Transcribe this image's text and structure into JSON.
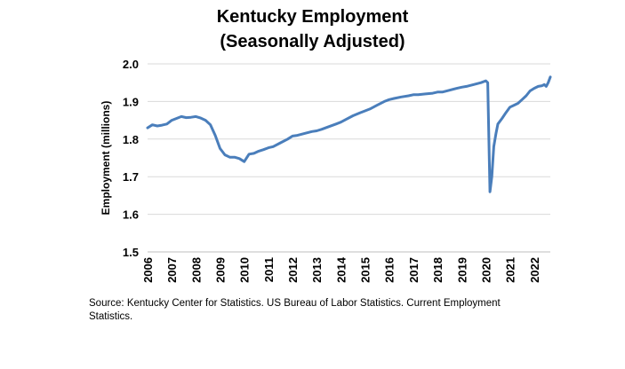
{
  "chart_data": {
    "type": "line",
    "title": "Kentucky Employment",
    "subtitle": "(Seasonally Adjusted)",
    "xlabel": "",
    "ylabel": "Employment (millions)",
    "ylim": [
      1.5,
      2.0
    ],
    "xlim": [
      2006,
      2022.67
    ],
    "yticks": [
      "1.5",
      "1.6",
      "1.7",
      "1.8",
      "1.9",
      "2.0"
    ],
    "xticks": [
      "2006",
      "2007",
      "2008",
      "2009",
      "2010",
      "2011",
      "2012",
      "2013",
      "2014",
      "2015",
      "2016",
      "2017",
      "2018",
      "2019",
      "2020",
      "2021",
      "2022"
    ],
    "grid": "horizontal",
    "legend": "none",
    "line_color": "#4a7ebb",
    "series": [
      {
        "x": [
          2006.0,
          2006.2,
          2006.4,
          2006.6,
          2006.8,
          2007.0,
          2007.2,
          2007.4,
          2007.6,
          2007.8,
          2008.0,
          2008.2,
          2008.4,
          2008.6,
          2008.8,
          2009.0,
          2009.2,
          2009.4,
          2009.6,
          2009.8,
          2010.0,
          2010.2,
          2010.4,
          2010.6,
          2010.8,
          2011.0,
          2011.2,
          2011.5,
          2011.8,
          2012.0,
          2012.2,
          2012.5,
          2012.8,
          2013.0,
          2013.2,
          2013.5,
          2013.8,
          2014.0,
          2014.2,
          2014.5,
          2014.8,
          2015.0,
          2015.2,
          2015.5,
          2015.8,
          2016.0,
          2016.2,
          2016.5,
          2016.8,
          2017.0,
          2017.2,
          2017.5,
          2017.8,
          2018.0,
          2018.2,
          2018.5,
          2018.8,
          2019.0,
          2019.2,
          2019.5,
          2019.8,
          2020.0,
          2020.08,
          2020.17,
          2020.25,
          2020.33,
          2020.42,
          2020.5,
          2020.67,
          2020.83,
          2021.0,
          2021.17,
          2021.33,
          2021.5,
          2021.67,
          2021.83,
          2022.0,
          2022.17,
          2022.33,
          2022.42,
          2022.5,
          2022.58,
          2022.67
        ],
        "values": [
          1.83,
          1.838,
          1.835,
          1.837,
          1.84,
          1.85,
          1.855,
          1.86,
          1.857,
          1.858,
          1.86,
          1.856,
          1.85,
          1.838,
          1.81,
          1.775,
          1.758,
          1.752,
          1.752,
          1.748,
          1.74,
          1.76,
          1.762,
          1.768,
          1.772,
          1.777,
          1.78,
          1.79,
          1.8,
          1.808,
          1.81,
          1.815,
          1.82,
          1.822,
          1.826,
          1.833,
          1.84,
          1.845,
          1.852,
          1.862,
          1.87,
          1.875,
          1.88,
          1.89,
          1.9,
          1.905,
          1.908,
          1.912,
          1.915,
          1.918,
          1.918,
          1.92,
          1.922,
          1.925,
          1.925,
          1.93,
          1.935,
          1.938,
          1.94,
          1.945,
          1.95,
          1.955,
          1.95,
          1.66,
          1.7,
          1.78,
          1.815,
          1.84,
          1.855,
          1.87,
          1.885,
          1.89,
          1.895,
          1.905,
          1.915,
          1.928,
          1.935,
          1.94,
          1.942,
          1.945,
          1.94,
          1.95,
          1.965
        ]
      }
    ]
  },
  "source_text": "Source: Kentucky Center for Statistics. US Bureau of Labor Statistics. Current Employment Statistics."
}
